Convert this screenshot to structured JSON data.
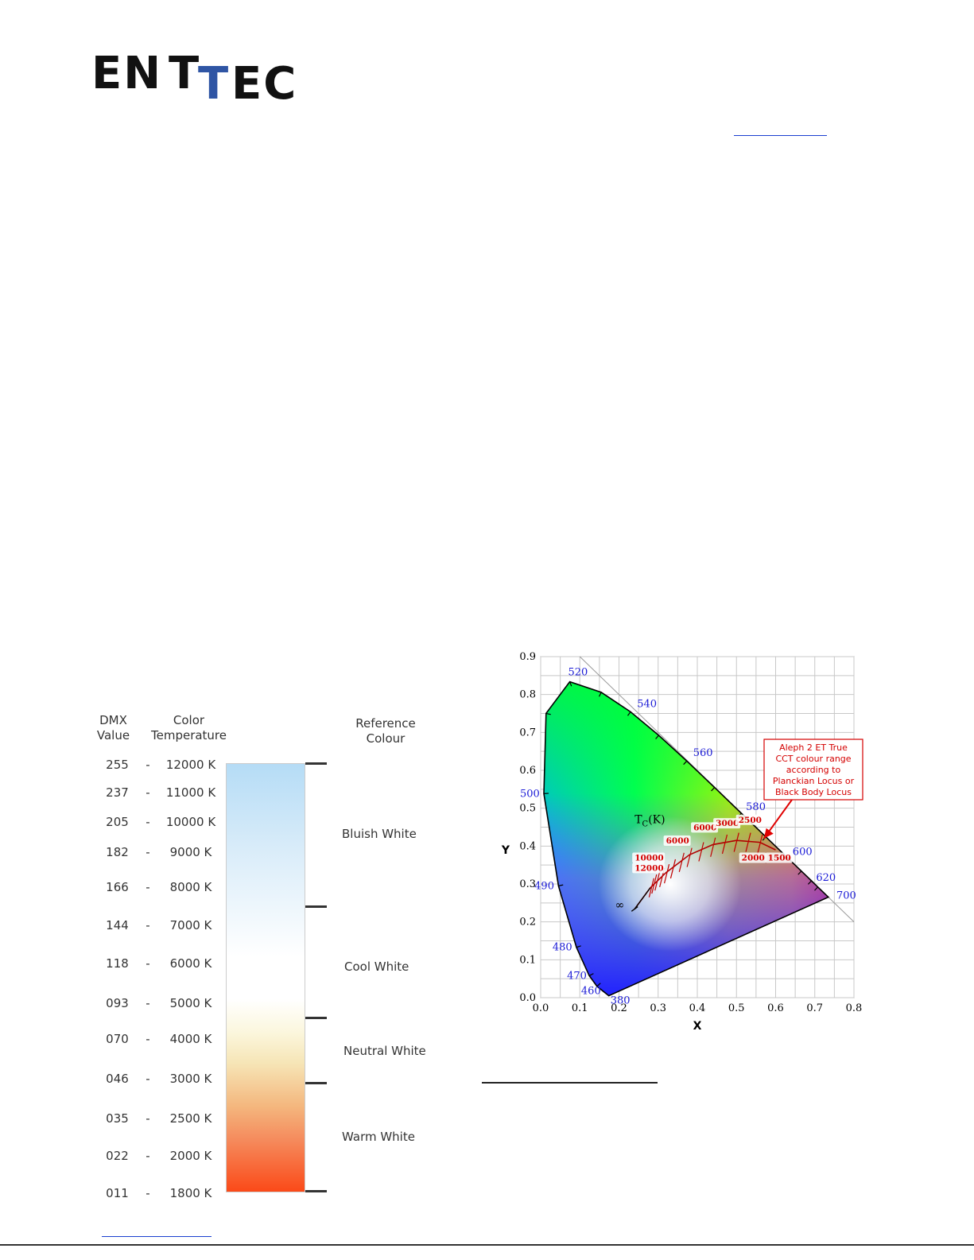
{
  "logo": {
    "part1": "EN",
    "part2": "T",
    "part3": "T",
    "part4": "EC"
  },
  "table": {
    "headers": {
      "dmx": "DMX\nValue",
      "temp": "Color\nTemperature",
      "ref": "Reference\nColour"
    },
    "rows": [
      {
        "dmx": "255",
        "dash": "-",
        "temp": "12000 K"
      },
      {
        "dmx": "237",
        "dash": "-",
        "temp": "11000 K"
      },
      {
        "dmx": "205",
        "dash": "-",
        "temp": "10000 K"
      },
      {
        "dmx": "182",
        "dash": "-",
        "temp": "9000 K"
      },
      {
        "dmx": "166",
        "dash": "-",
        "temp": "8000 K"
      },
      {
        "dmx": "144",
        "dash": "-",
        "temp": "7000 K"
      },
      {
        "dmx": "118",
        "dash": "-",
        "temp": "6000 K"
      },
      {
        "dmx": "093",
        "dash": "-",
        "temp": "5000 K"
      },
      {
        "dmx": "070",
        "dash": "-",
        "temp": "4000 K"
      },
      {
        "dmx": "046",
        "dash": "-",
        "temp": "3000 K"
      },
      {
        "dmx": "035",
        "dash": "-",
        "temp": "2500 K"
      },
      {
        "dmx": "022",
        "dash": "-",
        "temp": "2000 K"
      },
      {
        "dmx": "011",
        "dash": "-",
        "temp": "1800 K"
      }
    ],
    "references": [
      "Bluish White",
      "Cool White",
      "Neutral White",
      "Warm White"
    ]
  },
  "chart_data": {
    "type": "scatter",
    "xlabel": "X",
    "ylabel": "Y",
    "xlim": [
      0.0,
      0.8
    ],
    "ylim": [
      0.0,
      0.9
    ],
    "xticks": [
      "0.0",
      "0.1",
      "0.2",
      "0.3",
      "0.4",
      "0.5",
      "0.6",
      "0.7",
      "0.8"
    ],
    "yticks": [
      "0.0",
      "0.1",
      "0.2",
      "0.3",
      "0.4",
      "0.5",
      "0.6",
      "0.7",
      "0.8",
      "0.9"
    ],
    "wavelength_labels": [
      {
        "text": "520",
        "x": 0.074,
        "y": 0.834
      },
      {
        "text": "540",
        "x": 0.23,
        "y": 0.754
      },
      {
        "text": "560",
        "x": 0.373,
        "y": 0.625
      },
      {
        "text": "580",
        "x": 0.512,
        "y": 0.487
      },
      {
        "text": "600",
        "x": 0.627,
        "y": 0.372
      },
      {
        "text": "620",
        "x": 0.691,
        "y": 0.308
      },
      {
        "text": "700",
        "x": 0.735,
        "y": 0.265
      },
      {
        "text": "500",
        "x": 0.008,
        "y": 0.538
      },
      {
        "text": "490",
        "x": 0.045,
        "y": 0.295
      },
      {
        "text": "480",
        "x": 0.091,
        "y": 0.133
      },
      {
        "text": "470",
        "x": 0.124,
        "y": 0.058
      },
      {
        "text": "460",
        "x": 0.144,
        "y": 0.03
      },
      {
        "text": "380",
        "x": 0.174,
        "y": 0.005
      }
    ],
    "locus_label": "T",
    "locus_label_sub": "C",
    "locus_label_suffix": "(K)",
    "infinity_label": "∞",
    "cct_labels": [
      {
        "text": "10000",
        "x": 0.24,
        "y": 0.362
      },
      {
        "text": "12000",
        "x": 0.24,
        "y": 0.335
      },
      {
        "text": "6000",
        "x": 0.32,
        "y": 0.407
      },
      {
        "text": "6000",
        "x": 0.39,
        "y": 0.442
      },
      {
        "text": "3000",
        "x": 0.447,
        "y": 0.453
      },
      {
        "text": "2500",
        "x": 0.505,
        "y": 0.462
      },
      {
        "text": "2000",
        "x": 0.513,
        "y": 0.362
      },
      {
        "text": "1500",
        "x": 0.58,
        "y": 0.362
      }
    ],
    "callout": "Aleph 2 ET True\nCCT colour range\naccording to\nPlanckian Locus or\nBlack Body Locus",
    "colors": {
      "wavelength": "#1a1ad6",
      "cct": "#d40000"
    }
  }
}
